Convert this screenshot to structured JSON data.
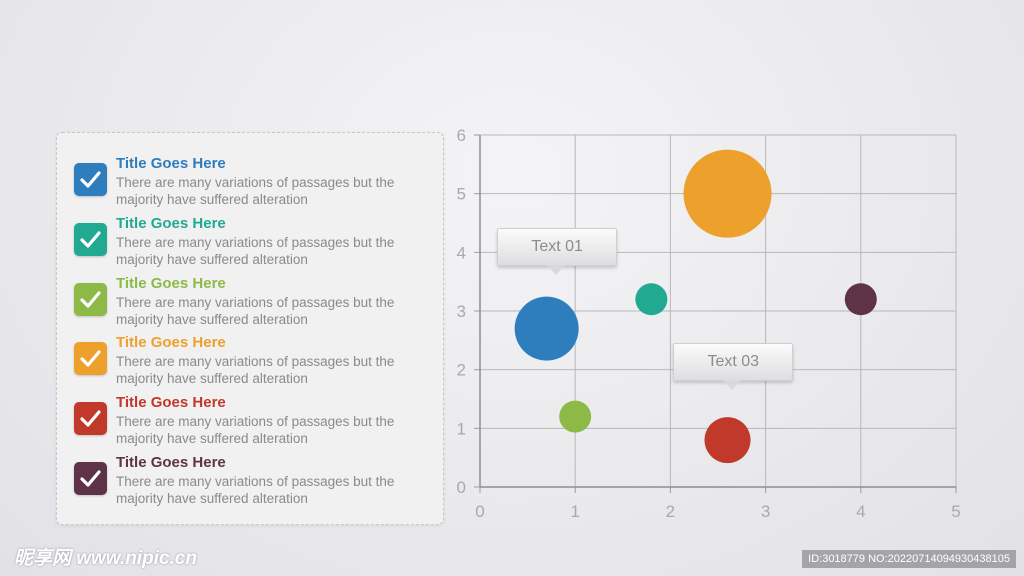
{
  "legend_items": [
    {
      "title": "Title Goes Here",
      "description": "There are many variations of passages but the\nmajority have  suffered alteration",
      "color": "#2e7dbd",
      "icon": "checkmark-icon"
    },
    {
      "title": "Title Goes Here",
      "description": "There are many variations of passages but the\nmajority have  suffered alteration",
      "color": "#22a992",
      "icon": "checkmark-icon"
    },
    {
      "title": "Title Goes Here",
      "description": "There are many variations of passages but the\nmajority have  suffered alteration",
      "color": "#8dba47",
      "icon": "checkmark-icon"
    },
    {
      "title": "Title Goes Here",
      "description": "There are many variations of passages but the\nmajority have  suffered alteration",
      "color": "#eda02b",
      "icon": "checkmark-icon"
    },
    {
      "title": "Title Goes Here",
      "description": "There are many variations of passages but the\nmajority have  suffered alteration",
      "color": "#c0392b",
      "icon": "checkmark-icon"
    },
    {
      "title": "Title Goes Here",
      "description": "There are many variations of passages but the\nmajority have  suffered alteration",
      "color": "#5e3347",
      "icon": "checkmark-icon"
    }
  ],
  "chart_data": {
    "type": "scatter",
    "xlim": [
      0,
      5
    ],
    "ylim": [
      0,
      6
    ],
    "x_ticks": [
      "0",
      "1",
      "2",
      "3",
      "4",
      "5"
    ],
    "y_ticks": [
      "0",
      "1",
      "2",
      "3",
      "4",
      "5",
      "6"
    ],
    "grid": true,
    "series": [
      {
        "x": 0.7,
        "y": 2.7,
        "size": 32,
        "color": "#2e7dbd"
      },
      {
        "x": 1.8,
        "y": 3.2,
        "size": 16,
        "color": "#22a992"
      },
      {
        "x": 1.0,
        "y": 1.2,
        "size": 16,
        "color": "#8dba47"
      },
      {
        "x": 2.6,
        "y": 5.0,
        "size": 44,
        "color": "#eda02b"
      },
      {
        "x": 2.6,
        "y": 0.8,
        "size": 23,
        "color": "#c0392b"
      },
      {
        "x": 4.0,
        "y": 3.2,
        "size": 16,
        "color": "#5e3347"
      }
    ],
    "annotations": [
      {
        "text": "Text 01",
        "x": 0.8,
        "y": 4.0
      },
      {
        "text": "Text 03",
        "x": 2.65,
        "y": 2.05
      }
    ]
  },
  "watermark": {
    "left": "昵享网 www.nipic.cn",
    "right": "ID:3018779 NO:20220714094930438105"
  }
}
